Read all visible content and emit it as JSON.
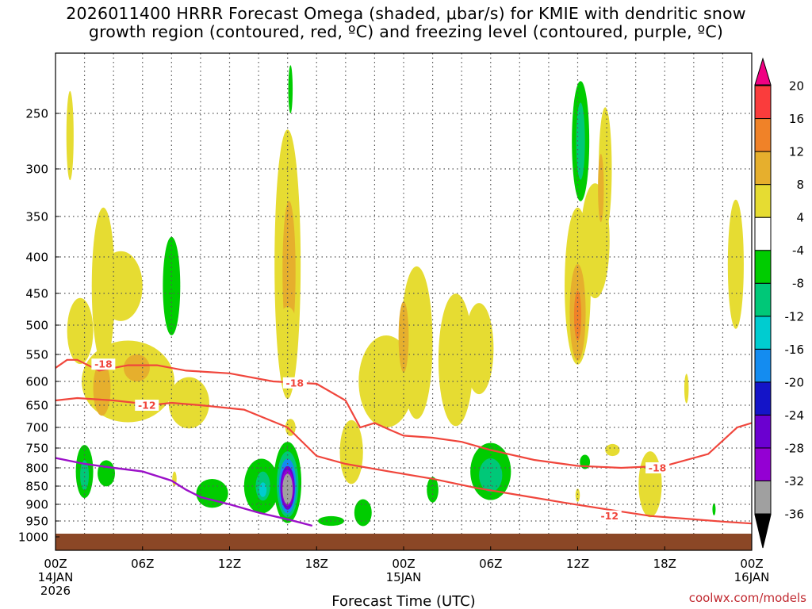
{
  "title": {
    "line1": "2026011400 HRRR Forecast Omega (shaded, μbar/s) for KMIE with dendritic snow",
    "line2": "growth region (contoured, red, ºC) and freezing level (contoured, purple, ºC)"
  },
  "credit": "coolwx.com/models",
  "chart_data": {
    "type": "heatmap",
    "xlabel": "Forecast Time (UTC)",
    "ylabel": "",
    "x_ticks": [
      {
        "hour": 0,
        "label": [
          "00Z",
          "14JAN",
          "2026"
        ]
      },
      {
        "hour": 6,
        "label": [
          "06Z"
        ]
      },
      {
        "hour": 12,
        "label": [
          "12Z"
        ]
      },
      {
        "hour": 18,
        "label": [
          "18Z"
        ]
      },
      {
        "hour": 24,
        "label": [
          "00Z",
          "15JAN"
        ]
      },
      {
        "hour": 30,
        "label": [
          "06Z"
        ]
      },
      {
        "hour": 36,
        "label": [
          "12Z"
        ]
      },
      {
        "hour": 42,
        "label": [
          "18Z"
        ]
      },
      {
        "hour": 48,
        "label": [
          "00Z",
          "16JAN"
        ]
      }
    ],
    "xlim": [
      0,
      48
    ],
    "y_axis": "pressure (hPa), reversed",
    "y_ticks": [
      250,
      300,
      350,
      400,
      450,
      500,
      550,
      600,
      650,
      700,
      750,
      800,
      850,
      900,
      950,
      1000
    ],
    "ylim": [
      1050,
      200
    ],
    "grid": true,
    "terrain_color": "#8b4726",
    "colorbar": {
      "placement": "right",
      "extend": "both",
      "levels": [
        -36,
        -32,
        -28,
        -24,
        -20,
        -16,
        -12,
        -8,
        -4,
        4,
        8,
        12,
        16,
        20
      ],
      "colors": [
        "#000000",
        "#a0a0a0",
        "#9400d3",
        "#6b00d0",
        "#1414c8",
        "#148cf0",
        "#00ccd0",
        "#00c878",
        "#00cc00",
        "#ffffff",
        "#e6dc32",
        "#e6af2d",
        "#f08228",
        "#fa3c3c",
        "#f00082"
      ]
    },
    "omega_regions": [
      {
        "t": 1.0,
        "p": 270,
        "dt": 0.25,
        "dp": 40,
        "value": 6
      },
      {
        "t": 1.7,
        "p": 510,
        "dt": 0.9,
        "dp": 55,
        "value": 6
      },
      {
        "t": 3.3,
        "p": 440,
        "dt": 0.8,
        "dp": 110,
        "value": 6
      },
      {
        "t": 4.5,
        "p": 440,
        "dt": 1.5,
        "dp": 50,
        "value": 6
      },
      {
        "t": 5.0,
        "p": 600,
        "dt": 3.2,
        "dp": 80,
        "value": 6
      },
      {
        "t": 3.2,
        "p": 615,
        "dt": 0.6,
        "dp": 55,
        "value": 10
      },
      {
        "t": 5.6,
        "p": 575,
        "dt": 0.9,
        "dp": 25,
        "value": 10
      },
      {
        "t": 9.2,
        "p": 645,
        "dt": 1.4,
        "dp": 55,
        "value": 6
      },
      {
        "t": 8.2,
        "p": 830,
        "dt": 0.15,
        "dp": 20,
        "value": 6
      },
      {
        "t": 16.0,
        "p": 410,
        "dt": 0.9,
        "dp": 170,
        "value": 6
      },
      {
        "t": 16.1,
        "p": 420,
        "dt": 0.45,
        "dp": 95,
        "value": 10
      },
      {
        "t": 16.0,
        "p": 500,
        "dt": 0.6,
        "dp": 30,
        "value": 6
      },
      {
        "t": 16.2,
        "p": 700,
        "dt": 0.35,
        "dp": 20,
        "value": 6
      },
      {
        "t": 22.8,
        "p": 600,
        "dt": 1.9,
        "dp": 90,
        "value": 6
      },
      {
        "t": 20.4,
        "p": 760,
        "dt": 0.8,
        "dp": 80,
        "value": 6
      },
      {
        "t": 24.9,
        "p": 530,
        "dt": 1.1,
        "dp": 130,
        "value": 6
      },
      {
        "t": 24.0,
        "p": 520,
        "dt": 0.35,
        "dp": 60,
        "value": 10
      },
      {
        "t": 27.6,
        "p": 560,
        "dt": 1.2,
        "dp": 120,
        "value": 6
      },
      {
        "t": 29.2,
        "p": 540,
        "dt": 1.0,
        "dp": 80,
        "value": 6
      },
      {
        "t": 36.0,
        "p": 440,
        "dt": 0.9,
        "dp": 110,
        "value": 6
      },
      {
        "t": 36.0,
        "p": 480,
        "dt": 0.55,
        "dp": 75,
        "value": 10
      },
      {
        "t": 36.0,
        "p": 485,
        "dt": 0.25,
        "dp": 40,
        "value": 14
      },
      {
        "t": 37.9,
        "p": 300,
        "dt": 0.45,
        "dp": 60,
        "value": 6
      },
      {
        "t": 37.2,
        "p": 380,
        "dt": 1.0,
        "dp": 70,
        "value": 6
      },
      {
        "t": 37.6,
        "p": 320,
        "dt": 0.2,
        "dp": 35,
        "value": 10
      },
      {
        "t": 38.4,
        "p": 755,
        "dt": 0.5,
        "dp": 15,
        "value": 6
      },
      {
        "t": 36.0,
        "p": 875,
        "dt": 0.15,
        "dp": 18,
        "value": 6
      },
      {
        "t": 41.0,
        "p": 845,
        "dt": 0.8,
        "dp": 90,
        "value": 6
      },
      {
        "t": 43.5,
        "p": 615,
        "dt": 0.15,
        "dp": 30,
        "value": 6
      },
      {
        "t": 46.9,
        "p": 410,
        "dt": 0.55,
        "dp": 85,
        "value": 6
      },
      {
        "t": 14.2,
        "p": 850,
        "dt": 1.2,
        "dp": 75,
        "value": -6
      },
      {
        "t": 14.3,
        "p": 850,
        "dt": 0.5,
        "dp": 40,
        "value": -12
      },
      {
        "t": 14.3,
        "p": 860,
        "dt": 0.25,
        "dp": 20,
        "value": -16
      },
      {
        "t": 16.0,
        "p": 840,
        "dt": 0.95,
        "dp": 110,
        "value": -8
      },
      {
        "t": 16.0,
        "p": 845,
        "dt": 0.75,
        "dp": 90,
        "value": -12
      },
      {
        "t": 16.0,
        "p": 850,
        "dt": 0.6,
        "dp": 75,
        "value": -20
      },
      {
        "t": 16.0,
        "p": 855,
        "dt": 0.5,
        "dp": 60,
        "value": -28
      },
      {
        "t": 16.0,
        "p": 855,
        "dt": 0.42,
        "dp": 50,
        "value": -32
      },
      {
        "t": 16.0,
        "p": 858,
        "dt": 0.35,
        "dp": 42,
        "value": -36
      },
      {
        "t": 16.2,
        "p": 230,
        "dt": 0.15,
        "dp": 20,
        "value": -6
      },
      {
        "t": 2.0,
        "p": 810,
        "dt": 0.6,
        "dp": 70,
        "value": -6
      },
      {
        "t": 2.0,
        "p": 820,
        "dt": 0.3,
        "dp": 40,
        "value": -12
      },
      {
        "t": 3.5,
        "p": 815,
        "dt": 0.6,
        "dp": 35,
        "value": -6
      },
      {
        "t": 8.0,
        "p": 440,
        "dt": 0.6,
        "dp": 70,
        "value": -6
      },
      {
        "t": 10.8,
        "p": 870,
        "dt": 1.1,
        "dp": 40,
        "value": -6
      },
      {
        "t": 19.0,
        "p": 950,
        "dt": 0.9,
        "dp": 15,
        "value": -6
      },
      {
        "t": 21.2,
        "p": 925,
        "dt": 0.6,
        "dp": 40,
        "value": -6
      },
      {
        "t": 30.0,
        "p": 810,
        "dt": 1.4,
        "dp": 75,
        "value": -6
      },
      {
        "t": 30.0,
        "p": 820,
        "dt": 0.8,
        "dp": 45,
        "value": -12
      },
      {
        "t": 26.0,
        "p": 860,
        "dt": 0.4,
        "dp": 35,
        "value": -6
      },
      {
        "t": 36.2,
        "p": 275,
        "dt": 0.6,
        "dp": 55,
        "value": -6
      },
      {
        "t": 36.2,
        "p": 275,
        "dt": 0.3,
        "dp": 35,
        "value": -12
      },
      {
        "t": 36.5,
        "p": 785,
        "dt": 0.35,
        "dp": 18,
        "value": -6
      },
      {
        "t": 45.4,
        "p": 915,
        "dt": 0.1,
        "dp": 18,
        "value": -6
      }
    ],
    "dgz_contours": [
      {
        "value": -18,
        "label": "-18",
        "points": [
          [
            0,
            575
          ],
          [
            0.8,
            560
          ],
          [
            1.5,
            560
          ],
          [
            3,
            580
          ],
          [
            5,
            570
          ],
          [
            7,
            570
          ],
          [
            9,
            580
          ],
          [
            12,
            585
          ],
          [
            15,
            600
          ],
          [
            18,
            605
          ],
          [
            20,
            640
          ],
          [
            21,
            700
          ],
          [
            22,
            690
          ],
          [
            23,
            705
          ],
          [
            24,
            720
          ],
          [
            26,
            725
          ],
          [
            28,
            735
          ],
          [
            30,
            755
          ],
          [
            33,
            780
          ],
          [
            36,
            795
          ],
          [
            39,
            800
          ],
          [
            42,
            795
          ],
          [
            45,
            765
          ],
          [
            47,
            700
          ],
          [
            48,
            690
          ]
        ],
        "labels": [
          [
            3.3,
            568
          ],
          [
            16.5,
            603
          ],
          [
            41.5,
            800
          ]
        ]
      },
      {
        "value": -12,
        "label": "-12",
        "points": [
          [
            0,
            640
          ],
          [
            1.5,
            635
          ],
          [
            4,
            640
          ],
          [
            5.5,
            645
          ],
          [
            6.5,
            650
          ],
          [
            8,
            645
          ],
          [
            10,
            650
          ],
          [
            13,
            660
          ],
          [
            16,
            700
          ],
          [
            18,
            770
          ],
          [
            20,
            790
          ],
          [
            23,
            810
          ],
          [
            26,
            830
          ],
          [
            29,
            855
          ],
          [
            32,
            875
          ],
          [
            35,
            895
          ],
          [
            38,
            915
          ],
          [
            41,
            935
          ],
          [
            44,
            945
          ],
          [
            46,
            952
          ],
          [
            48,
            958
          ]
        ],
        "labels": [
          [
            6.3,
            650
          ],
          [
            38.2,
            935
          ]
        ]
      }
    ],
    "freezing_level": {
      "color": "#9b10c8",
      "points": [
        [
          0,
          775
        ],
        [
          2,
          790
        ],
        [
          4,
          800
        ],
        [
          6,
          810
        ],
        [
          8,
          835
        ],
        [
          9,
          860
        ],
        [
          10,
          880
        ],
        [
          12,
          900
        ],
        [
          14,
          925
        ],
        [
          16,
          945
        ],
        [
          17.7,
          965
        ]
      ]
    }
  }
}
